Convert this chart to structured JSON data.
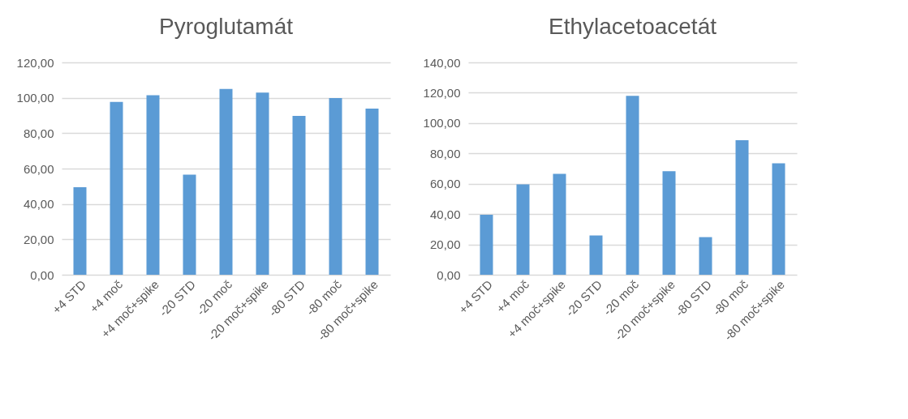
{
  "chart_data": [
    {
      "type": "bar",
      "title": "Pyroglutamát",
      "categories": [
        "+4 STD",
        "+4 moč",
        "+4 moč+spike",
        "-20 STD",
        "-20 moč",
        "-20 moč+spike",
        "-80 STD",
        "-80 moč",
        "-80 moč+spike"
      ],
      "values": [
        49.5,
        97.7,
        101.5,
        56.6,
        105.0,
        102.9,
        89.8,
        99.8,
        93.9
      ],
      "color": "#5b9bd5",
      "ylim": [
        0,
        120
      ],
      "yticks": [
        {
          "value": 0,
          "label": "0,00"
        },
        {
          "value": 20,
          "label": "20,00"
        },
        {
          "value": 40,
          "label": "40,00"
        },
        {
          "value": 60,
          "label": "60,00"
        },
        {
          "value": 80,
          "label": "80,00"
        },
        {
          "value": 100,
          "label": "100,00"
        },
        {
          "value": 120,
          "label": "120,00"
        }
      ],
      "grid": "y"
    },
    {
      "type": "bar",
      "title": "Ethylacetoacetát",
      "categories": [
        "+4 STD",
        "+4 moč",
        "+4 moč+spike",
        "-20 STD",
        "-20 moč",
        "-20 moč+spike",
        "-80 STD",
        "-80 moč",
        "-80 moč+spike"
      ],
      "values": [
        39.6,
        59.6,
        66.5,
        25.9,
        117.9,
        68.3,
        24.8,
        88.7,
        73.5
      ],
      "color": "#5b9bd5",
      "ylim": [
        0,
        140
      ],
      "yticks": [
        {
          "value": 0,
          "label": "0,00"
        },
        {
          "value": 20,
          "label": "20,00"
        },
        {
          "value": 40,
          "label": "40,00"
        },
        {
          "value": 60,
          "label": "60,00"
        },
        {
          "value": 80,
          "label": "80,00"
        },
        {
          "value": 100,
          "label": "100,00"
        },
        {
          "value": 120,
          "label": "120,00"
        },
        {
          "value": 140,
          "label": "140,00"
        }
      ],
      "grid": "y"
    }
  ]
}
